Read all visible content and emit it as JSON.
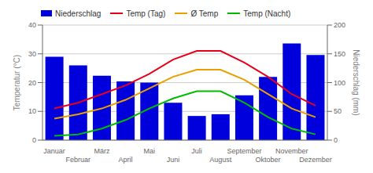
{
  "chart_data": {
    "type": "bar",
    "categories": [
      "Januar",
      "Februar",
      "März",
      "April",
      "Mai",
      "Juni",
      "Juli",
      "August",
      "September",
      "Oktober",
      "November",
      "Dezember"
    ],
    "series": [
      {
        "name": "Niederschlag",
        "type": "bar",
        "color": "#0000dd",
        "axis": "y2",
        "values": [
          145,
          130,
          112,
          102,
          100,
          65,
          42,
          45,
          78,
          110,
          168,
          148
        ]
      },
      {
        "name": "Temp (Tag)",
        "type": "line",
        "color": "#e8001a",
        "values": [
          11,
          13,
          16,
          19,
          23,
          28,
          31,
          31,
          27,
          22,
          16,
          12
        ]
      },
      {
        "name": "Ø Temp",
        "type": "line",
        "color": "#e8a000",
        "values": [
          7.5,
          9,
          11,
          14,
          18,
          22,
          24.5,
          24.5,
          21,
          16,
          11,
          8
        ]
      },
      {
        "name": "Temp (Nacht)",
        "type": "line",
        "color": "#00bb00",
        "values": [
          1.5,
          2,
          4,
          7,
          11,
          14.5,
          17,
          17,
          13,
          8,
          4,
          2
        ]
      }
    ],
    "ylabel": "Temperatur (°C)",
    "y2label": "Niederschlag (mm)",
    "ylim": [
      0,
      40
    ],
    "yticks": [
      0,
      10,
      20,
      30,
      40
    ],
    "y2lim": [
      0,
      200
    ],
    "y2ticks": [
      0,
      50,
      100,
      150,
      200
    ],
    "grid": true,
    "legend": "top"
  }
}
